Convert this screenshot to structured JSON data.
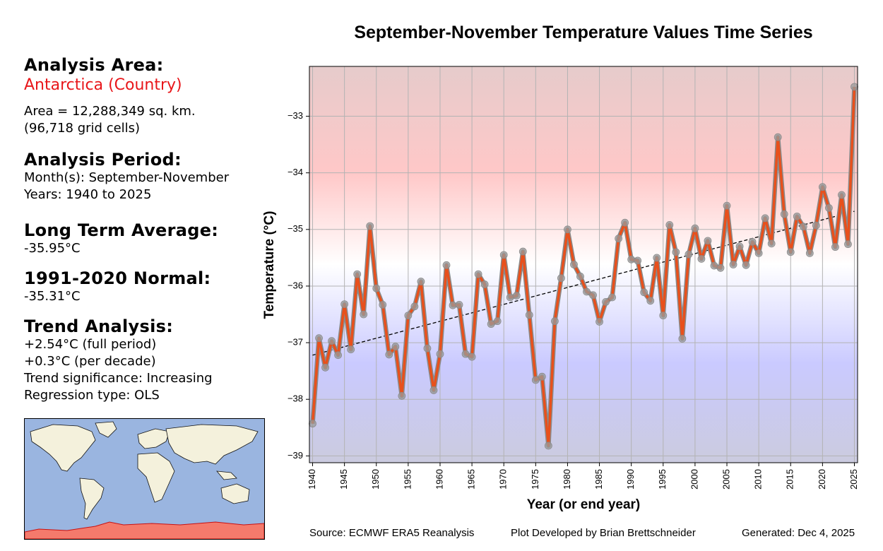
{
  "panel": {
    "area_heading": "Analysis Area:",
    "region": "Antarctica (Country)",
    "area_line1": "Area = 12,288,349 sq. km.",
    "area_line2": "(96,718 grid cells)",
    "period_heading": "Analysis Period:",
    "months": "Month(s): September-November",
    "years": "Years: 1940 to 2025",
    "lta_heading": "Long Term Average:",
    "lta_value": "-35.95°C",
    "normal_heading": "1991-2020 Normal:",
    "normal_value": "-35.31°C",
    "trend_heading": "Trend Analysis:",
    "trend_full": "+2.54°C (full period)",
    "trend_decade": "+0.3°C (per decade)",
    "trend_sig": "Trend significance: Increasing",
    "regression": "Regression type: OLS"
  },
  "footer": {
    "source": "Source: ECMWF ERA5 Reanalysis",
    "developer": "Plot Developed by Brian Brettschneider",
    "generated": "Generated: Dec 4, 2025"
  },
  "colors": {
    "line": "#e8501c",
    "marker": "#9a9a9a",
    "trend": "#000000",
    "ocean": "#9ab5e0",
    "land": "#f4f1dc",
    "highlight": "#f47a6c"
  },
  "chart_data": {
    "type": "line",
    "title": "September-November Temperature Values Time Series",
    "xlabel": "Year (or end year)",
    "ylabel": "Temperature (°C)",
    "xlim": [
      1939.5,
      2025.5
    ],
    "ylim": [
      -39.12,
      -32.12
    ],
    "xticks": [
      1940,
      1945,
      1950,
      1955,
      1960,
      1965,
      1970,
      1975,
      1980,
      1985,
      1990,
      1995,
      2000,
      2005,
      2010,
      2015,
      2020,
      2025
    ],
    "yticks": [
      -39,
      -38,
      -37,
      -36,
      -35,
      -34,
      -33
    ],
    "ytick_labels": [
      "−39",
      "−38",
      "−37",
      "−36",
      "−35",
      "−34",
      "−33"
    ],
    "grid": true,
    "x": [
      1940,
      1941,
      1942,
      1943,
      1944,
      1945,
      1946,
      1947,
      1948,
      1949,
      1950,
      1951,
      1952,
      1953,
      1954,
      1955,
      1956,
      1957,
      1958,
      1959,
      1960,
      1961,
      1962,
      1963,
      1964,
      1965,
      1966,
      1967,
      1968,
      1969,
      1970,
      1971,
      1972,
      1973,
      1974,
      1975,
      1976,
      1977,
      1978,
      1979,
      1980,
      1981,
      1982,
      1983,
      1984,
      1985,
      1986,
      1987,
      1988,
      1989,
      1990,
      1991,
      1992,
      1993,
      1994,
      1995,
      1996,
      1997,
      1998,
      1999,
      2000,
      2001,
      2002,
      2003,
      2004,
      2005,
      2006,
      2007,
      2008,
      2009,
      2010,
      2011,
      2012,
      2013,
      2014,
      2015,
      2016,
      2017,
      2018,
      2019,
      2020,
      2021,
      2022,
      2023,
      2024,
      2025
    ],
    "values": [
      -38.43,
      -36.92,
      -37.44,
      -36.97,
      -37.22,
      -36.32,
      -37.12,
      -35.79,
      -36.5,
      -34.94,
      -36.04,
      -36.33,
      -37.21,
      -37.07,
      -37.94,
      -36.52,
      -36.36,
      -35.92,
      -37.1,
      -37.84,
      -37.2,
      -35.63,
      -36.34,
      -36.33,
      -37.2,
      -37.25,
      -35.79,
      -35.97,
      -36.67,
      -36.62,
      -35.45,
      -36.2,
      -36.17,
      -35.39,
      -36.51,
      -37.66,
      -37.6,
      -38.82,
      -36.62,
      -35.86,
      -35.0,
      -35.62,
      -35.83,
      -36.1,
      -36.16,
      -36.63,
      -36.28,
      -36.2,
      -35.16,
      -34.88,
      -35.53,
      -35.55,
      -36.11,
      -36.26,
      -35.5,
      -36.52,
      -34.92,
      -35.4,
      -36.93,
      -35.44,
      -34.98,
      -35.52,
      -35.2,
      -35.64,
      -35.68,
      -34.58,
      -35.62,
      -35.3,
      -35.63,
      -35.22,
      -35.42,
      -34.8,
      -35.25,
      -33.37,
      -34.73,
      -35.4,
      -34.77,
      -34.95,
      -35.42,
      -34.93,
      -34.25,
      -34.62,
      -35.31,
      -34.39,
      -35.26,
      -32.48
    ],
    "trend_line": {
      "x": [
        1940,
        2025
      ],
      "values": [
        -37.22,
        -34.68
      ]
    },
    "background_bands": "red upper, white middle, blue lower"
  }
}
